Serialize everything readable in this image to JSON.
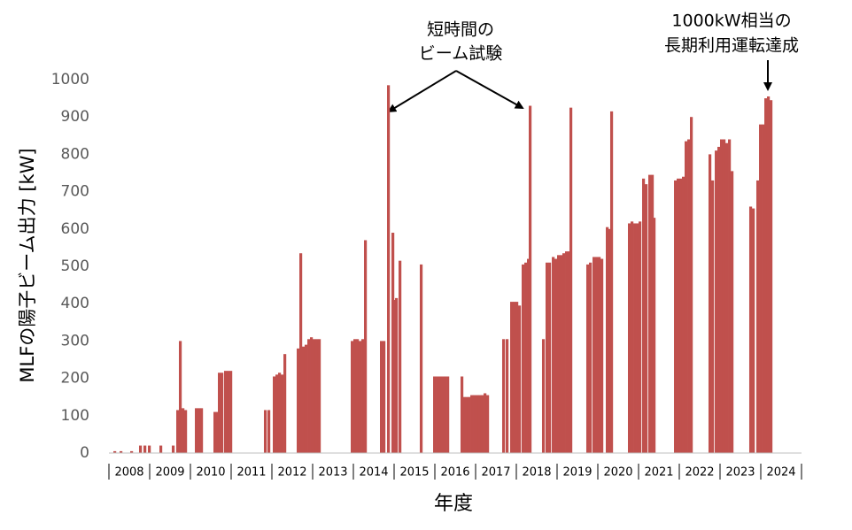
{
  "chart_data": {
    "type": "bar",
    "y_label": "MLFの陽子ビーム出力 [kW]",
    "x_label": "年度",
    "annotations": [
      {
        "lines": [
          "短時間の",
          "ビーム試験"
        ]
      },
      {
        "lines": [
          "1000kW相当の",
          "長期利用運転達成"
        ]
      }
    ],
    "color": "#c0504d",
    "grid": false,
    "xlim": [
      2008,
      2025
    ],
    "xticks": [
      2008,
      2009,
      2010,
      2011,
      2012,
      2013,
      2014,
      2015,
      2016,
      2017,
      2018,
      2019,
      2020,
      2021,
      2022,
      2023,
      2024
    ],
    "ylim": [
      0,
      1000
    ],
    "yticks": [
      0,
      100,
      200,
      300,
      400,
      500,
      600,
      700,
      800,
      900,
      1000
    ],
    "x": [
      2008.109,
      2008.261,
      2008.522,
      2008.739,
      2008.848,
      2008.957,
      2009.239,
      2009.543,
      2009.652,
      2009.717,
      2009.783,
      2009.848,
      2010.109,
      2010.174,
      2010.239,
      2010.565,
      2010.63,
      2010.674,
      2010.739,
      2010.826,
      2010.891,
      2010.957,
      2011.804,
      2011.891,
      2012.022,
      2012.087,
      2012.152,
      2012.217,
      2012.283,
      2012.609,
      2012.674,
      2012.739,
      2012.804,
      2012.87,
      2012.935,
      2013.0,
      2013.065,
      2013.13,
      2013.935,
      2014.0,
      2014.065,
      2014.13,
      2014.196,
      2014.261,
      2014.652,
      2014.717,
      2014.826,
      2014.935,
      2014.978,
      2015.022,
      2015.109,
      2015.63,
      2015.957,
      2016.022,
      2016.087,
      2016.152,
      2016.217,
      2016.283,
      2016.63,
      2016.674,
      2016.739,
      2016.804,
      2016.87,
      2016.935,
      2017.0,
      2017.065,
      2017.13,
      2017.196,
      2017.261,
      2017.652,
      2017.739,
      2017.848,
      2017.913,
      2017.978,
      2018.043,
      2018.13,
      2018.196,
      2018.261,
      2018.304,
      2018.63,
      2018.717,
      2018.783,
      2018.87,
      2018.935,
      2019.0,
      2019.065,
      2019.13,
      2019.196,
      2019.261,
      2019.304,
      2019.717,
      2019.783,
      2019.87,
      2019.935,
      2020.0,
      2020.065,
      2020.196,
      2020.239,
      2020.304,
      2020.739,
      2020.804,
      2020.87,
      2020.935,
      2021.0,
      2021.087,
      2021.152,
      2021.239,
      2021.304,
      2021.348,
      2021.87,
      2021.935,
      2022.0,
      2022.065,
      2022.13,
      2022.196,
      2022.261,
      2022.717,
      2022.783,
      2022.87,
      2022.935,
      2023.0,
      2023.065,
      2023.13,
      2023.196,
      2023.261,
      2023.717,
      2023.783,
      2023.891,
      2023.957,
      2024.022,
      2024.087,
      2024.152,
      2024.217
    ],
    "values": [
      5,
      5,
      5,
      20,
      20,
      20,
      20,
      20,
      115,
      300,
      120,
      115,
      120,
      120,
      120,
      110,
      110,
      215,
      215,
      220,
      220,
      220,
      115,
      115,
      205,
      210,
      215,
      210,
      265,
      280,
      535,
      285,
      290,
      305,
      310,
      305,
      305,
      305,
      300,
      305,
      305,
      300,
      305,
      570,
      300,
      300,
      985,
      590,
      410,
      415,
      515,
      505,
      205,
      205,
      205,
      205,
      205,
      205,
      205,
      150,
      150,
      150,
      155,
      155,
      155,
      155,
      155,
      160,
      155,
      305,
      305,
      405,
      405,
      405,
      395,
      505,
      510,
      520,
      930,
      305,
      510,
      510,
      525,
      520,
      530,
      530,
      535,
      540,
      540,
      925,
      505,
      510,
      525,
      525,
      525,
      520,
      605,
      600,
      915,
      615,
      620,
      615,
      615,
      620,
      735,
      720,
      745,
      745,
      630,
      730,
      735,
      735,
      740,
      835,
      840,
      900,
      800,
      730,
      810,
      820,
      840,
      840,
      830,
      840,
      755,
      660,
      655,
      730,
      880,
      880,
      950,
      955,
      945
    ]
  }
}
